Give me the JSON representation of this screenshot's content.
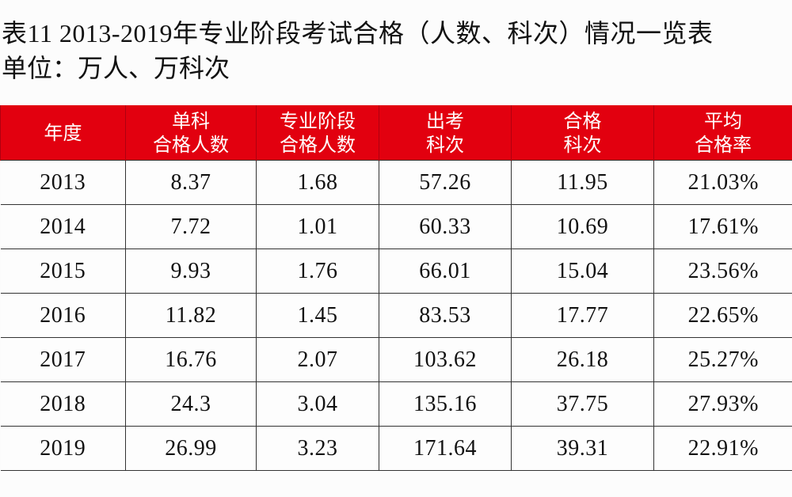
{
  "title": "表11  2013-2019年专业阶段考试合格（人数、科次）情况一览表",
  "unit": "单位：万人、万科次",
  "table": {
    "header_color": "#e2000f",
    "headers": [
      {
        "line1": "年度",
        "line2": ""
      },
      {
        "line1": "单科",
        "line2": "合格人数"
      },
      {
        "line1": "专业阶段",
        "line2": "合格人数"
      },
      {
        "line1": "出考",
        "line2": "科次"
      },
      {
        "line1": "合格",
        "line2": "科次"
      },
      {
        "line1": "平均",
        "line2": "合格率"
      }
    ],
    "rows": [
      [
        "2013",
        "8.37",
        "1.68",
        "57.26",
        "11.95",
        "21.03%"
      ],
      [
        "2014",
        "7.72",
        "1.01",
        "60.33",
        "10.69",
        "17.61%"
      ],
      [
        "2015",
        "9.93",
        "1.76",
        "66.01",
        "15.04",
        "23.56%"
      ],
      [
        "2016",
        "11.82",
        "1.45",
        "83.53",
        "17.77",
        "22.65%"
      ],
      [
        "2017",
        "16.76",
        "2.07",
        "103.62",
        "26.18",
        "25.27%"
      ],
      [
        "2018",
        "24.3",
        "3.04",
        "135.16",
        "37.75",
        "27.93%"
      ],
      [
        "2019",
        "26.99",
        "3.23",
        "171.64",
        "39.31",
        "22.91%"
      ]
    ]
  }
}
